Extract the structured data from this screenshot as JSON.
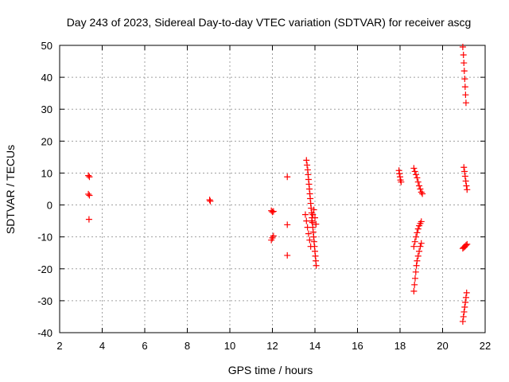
{
  "chart_data": {
    "type": "scatter",
    "title": "Day 243 of 2023, Sidereal Day-to-day VTEC variation (SDTVAR) for receiver ascg",
    "xlabel": "GPS time / hours",
    "ylabel": "SDTVAR / TECUs",
    "xlim": [
      2,
      22
    ],
    "ylim": [
      -40,
      50
    ],
    "xticks": [
      2,
      4,
      6,
      8,
      10,
      12,
      14,
      16,
      18,
      20,
      22
    ],
    "yticks": [
      -40,
      -30,
      -20,
      -10,
      0,
      10,
      20,
      30,
      40,
      50
    ],
    "grid": true,
    "marker": "+",
    "color": "#ff0000",
    "series": [
      {
        "name": "SDTVAR",
        "points": [
          [
            3.35,
            9.2
          ],
          [
            3.4,
            8.8
          ],
          [
            3.35,
            3.4
          ],
          [
            3.4,
            3.0
          ],
          [
            3.38,
            -4.5
          ],
          [
            9.05,
            1.6
          ],
          [
            9.08,
            1.2
          ],
          [
            11.95,
            -1.8
          ],
          [
            12.0,
            -2.2
          ],
          [
            12.05,
            -2.0
          ],
          [
            11.95,
            -11.0
          ],
          [
            12.0,
            -10.3
          ],
          [
            12.05,
            -9.7
          ],
          [
            12.7,
            8.8
          ],
          [
            12.7,
            -6.2
          ],
          [
            12.7,
            -15.8
          ],
          [
            13.6,
            14.0
          ],
          [
            13.63,
            12.5
          ],
          [
            13.66,
            11.0
          ],
          [
            13.68,
            9.5
          ],
          [
            13.7,
            8.0
          ],
          [
            13.72,
            6.5
          ],
          [
            13.74,
            5.0
          ],
          [
            13.76,
            3.5
          ],
          [
            13.78,
            2.0
          ],
          [
            13.8,
            0.5
          ],
          [
            13.82,
            -1.0
          ],
          [
            13.84,
            -2.5
          ],
          [
            13.86,
            -4.0
          ],
          [
            13.88,
            -5.5
          ],
          [
            13.9,
            -7.0
          ],
          [
            13.92,
            -8.5
          ],
          [
            13.94,
            -10.0
          ],
          [
            13.96,
            -11.5
          ],
          [
            13.98,
            -13.0
          ],
          [
            14.0,
            -14.5
          ],
          [
            14.02,
            -16.0
          ],
          [
            14.04,
            -17.5
          ],
          [
            14.06,
            -19.0
          ],
          [
            13.55,
            -3.0
          ],
          [
            13.6,
            -5.0
          ],
          [
            13.65,
            -7.0
          ],
          [
            13.7,
            -9.0
          ],
          [
            13.75,
            -11.0
          ],
          [
            13.8,
            -13.0
          ],
          [
            13.85,
            -5.0
          ],
          [
            13.9,
            -3.0
          ],
          [
            13.95,
            -1.5
          ],
          [
            14.0,
            -4.0
          ],
          [
            14.05,
            -6.0
          ],
          [
            17.95,
            10.8
          ],
          [
            17.97,
            9.8
          ],
          [
            18.0,
            8.8
          ],
          [
            18.02,
            7.8
          ],
          [
            18.05,
            7.2
          ],
          [
            18.65,
            11.5
          ],
          [
            18.7,
            10.5
          ],
          [
            18.75,
            9.5
          ],
          [
            18.8,
            8.5
          ],
          [
            18.85,
            7.2
          ],
          [
            18.9,
            6.0
          ],
          [
            18.95,
            5.0
          ],
          [
            19.0,
            4.0
          ],
          [
            19.05,
            3.5
          ],
          [
            18.65,
            -13.0
          ],
          [
            18.7,
            -11.5
          ],
          [
            18.75,
            -10.0
          ],
          [
            18.8,
            -8.7
          ],
          [
            18.85,
            -7.5
          ],
          [
            18.9,
            -6.5
          ],
          [
            18.95,
            -5.8
          ],
          [
            19.0,
            -5.2
          ],
          [
            18.65,
            -27.0
          ],
          [
            18.68,
            -25.0
          ],
          [
            18.71,
            -23.0
          ],
          [
            18.74,
            -21.0
          ],
          [
            18.77,
            -19.0
          ],
          [
            18.8,
            -17.5
          ],
          [
            18.85,
            -16.0
          ],
          [
            18.9,
            -14.5
          ],
          [
            18.95,
            -13.0
          ],
          [
            19.0,
            -12.0
          ],
          [
            20.95,
            49.5
          ],
          [
            20.98,
            47.0
          ],
          [
            21.0,
            44.5
          ],
          [
            21.02,
            42.0
          ],
          [
            21.04,
            39.5
          ],
          [
            21.06,
            37.0
          ],
          [
            21.08,
            34.5
          ],
          [
            21.1,
            32.0
          ],
          [
            21.0,
            11.8
          ],
          [
            21.03,
            10.5
          ],
          [
            21.06,
            9.0
          ],
          [
            21.09,
            7.5
          ],
          [
            21.12,
            6.0
          ],
          [
            21.15,
            4.8
          ],
          [
            20.95,
            -13.6
          ],
          [
            21.0,
            -13.3
          ],
          [
            21.05,
            -13.0
          ],
          [
            21.1,
            -12.6
          ],
          [
            21.15,
            -12.3
          ],
          [
            20.95,
            -36.5
          ],
          [
            20.98,
            -35.0
          ],
          [
            21.01,
            -33.5
          ],
          [
            21.04,
            -32.0
          ],
          [
            21.07,
            -30.5
          ],
          [
            21.1,
            -29.0
          ],
          [
            21.13,
            -27.5
          ]
        ]
      }
    ]
  }
}
